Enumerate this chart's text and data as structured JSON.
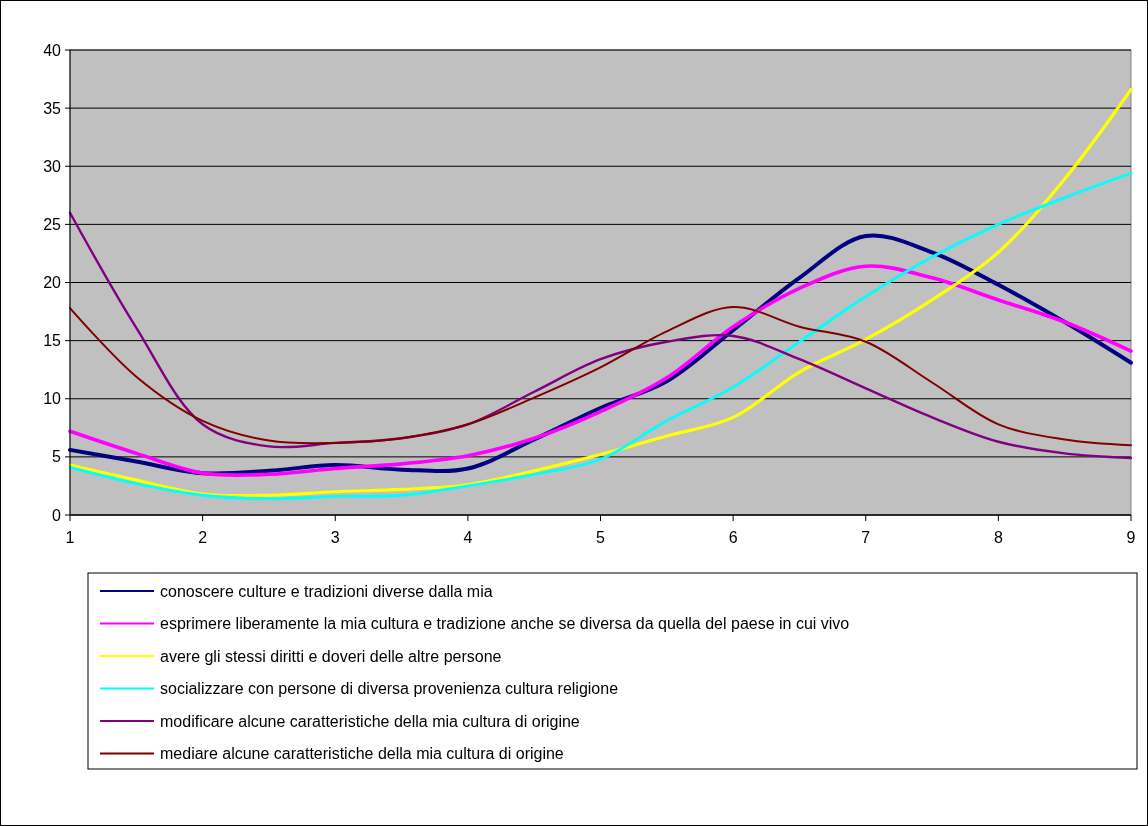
{
  "chart_data": {
    "type": "line",
    "x": [
      1,
      1.5,
      2,
      2.5,
      3,
      3.5,
      4,
      4.5,
      5,
      5.5,
      6,
      6.5,
      7,
      7.5,
      8,
      8.5,
      9
    ],
    "xlim": [
      1,
      9
    ],
    "xticks": [
      1,
      2,
      3,
      4,
      5,
      6,
      7,
      8,
      9
    ],
    "ylim": [
      0,
      40
    ],
    "yticks": [
      0,
      5,
      10,
      15,
      20,
      25,
      30,
      35,
      40
    ],
    "grid": "y",
    "legend": "bottom",
    "marker": "none",
    "line_style": "solid",
    "series": [
      {
        "name": "conoscere culture e tradizioni diverse dalla mia",
        "color": "#000080",
        "values": [
          5.6,
          4.6,
          3.6,
          3.8,
          4.3,
          3.9,
          4.0,
          6.5,
          9.2,
          11.5,
          15.9,
          20.4,
          24,
          22.6,
          19.8,
          16.6,
          13.1
        ]
      },
      {
        "name": "esprimere liberamente la mia cultura e tradizione anche se diversa da quella del paese in cui vivo",
        "color": "#ff00ff",
        "values": [
          7.2,
          5.3,
          3.6,
          3.5,
          4.0,
          4.4,
          5.1,
          6.6,
          8.9,
          11.8,
          16.2,
          19.5,
          21.4,
          20.4,
          18.5,
          16.6,
          14.1
        ]
      },
      {
        "name": "avere gli stessi diritti e doveri delle altre persone",
        "color": "#ffff00",
        "values": [
          4.3,
          3.0,
          1.8,
          1.7,
          2.0,
          2.2,
          2.6,
          3.8,
          5.2,
          6.8,
          8.4,
          12.3,
          15.1,
          18.5,
          22.6,
          28.9,
          36.6
        ]
      },
      {
        "name": "socializzare con persone di diversa provenienza cultura religione",
        "color": "#00ffff",
        "values": [
          4.1,
          2.7,
          1.7,
          1.4,
          1.6,
          1.7,
          2.5,
          3.5,
          4.8,
          8.1,
          11.0,
          14.9,
          18.8,
          22.2,
          25,
          27.3,
          29.4
        ]
      },
      {
        "name": "modificare alcune caratteristiche della mia cultura di origine",
        "color": "#800080",
        "values": [
          26,
          16.1,
          7.8,
          5.9,
          6.2,
          6.6,
          7.8,
          10.6,
          13.4,
          14.9,
          15.4,
          13.4,
          10.9,
          8.4,
          6.3,
          5.3,
          4.9
        ]
      },
      {
        "name": "mediare alcune caratteristiche della mia cultura di origine",
        "color": "#800000",
        "values": [
          17.8,
          11.9,
          8.1,
          6.4,
          6.2,
          6.6,
          7.8,
          10.1,
          12.7,
          15.8,
          17.9,
          16.2,
          14.9,
          11.4,
          7.8,
          6.5,
          6.0
        ]
      }
    ]
  }
}
